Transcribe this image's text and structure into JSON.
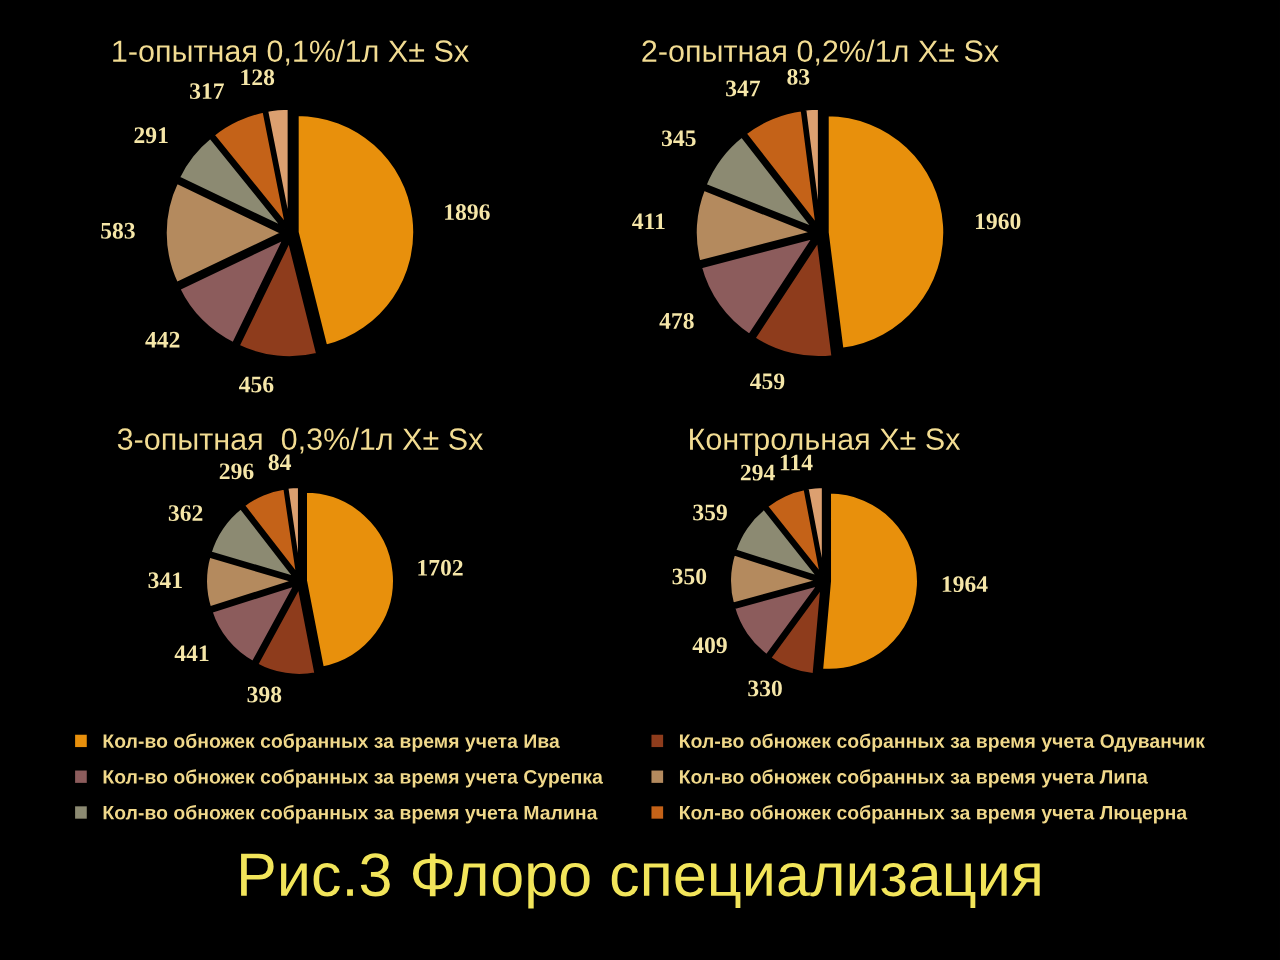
{
  "chart_data": [
    {
      "type": "pie",
      "title": "1-опытная 0,1%/1л X± Sx",
      "categories": [
        "Кол-во обножек собранных за время учета Ива",
        "Кол-во обножек собранных за время учета Одуванчик",
        "Кол-во обножек собранных за время учета Сурепка",
        "Кол-во обножек собранных за время учета Липа",
        "Кол-во обножек собранных за время учета Малина",
        "Кол-во обножек собранных за время учета Люцерна",
        null
      ],
      "values": [
        1896,
        456,
        442,
        583,
        291,
        317,
        128
      ],
      "colors": [
        "#e8900c",
        "#8e3c1c",
        "#8c5c5c",
        "#b48a5e",
        "#8c8a72",
        "#c46218",
        "#dca070"
      ],
      "data_labels": true,
      "legend": "bottom"
    },
    {
      "type": "pie",
      "title": "2-опытная 0,2%/1л X± Sx",
      "categories": [
        null,
        null,
        null,
        null,
        null,
        null,
        null
      ],
      "values": [
        1960,
        459,
        478,
        411,
        345,
        347,
        83
      ],
      "colors": [
        "#e8900c",
        "#8e3c1c",
        "#8c5c5c",
        "#b48a5e",
        "#8c8a72",
        "#c46218",
        "#dca070"
      ],
      "data_labels": true
    },
    {
      "type": "pie",
      "title": "3-опытная  0,3%/1л X± Sx",
      "categories": [
        null,
        null,
        null,
        null,
        null,
        null,
        null
      ],
      "values": [
        1702,
        398,
        441,
        341,
        362,
        296,
        84
      ],
      "colors": [
        "#e8900c",
        "#8e3c1c",
        "#8c5c5c",
        "#b48a5e",
        "#8c8a72",
        "#c46218",
        "#dca070"
      ],
      "data_labels": true
    },
    {
      "type": "pie",
      "title": "Контрольная X± Sx",
      "categories": [
        null,
        null,
        null,
        null,
        null,
        null,
        null
      ],
      "values": [
        1964,
        330,
        409,
        350,
        359,
        294,
        114
      ],
      "colors": [
        "#e8900c",
        "#8e3c1c",
        "#8c5c5c",
        "#b48a5e",
        "#8c8a72",
        "#c46218",
        "#dca070"
      ],
      "data_labels": true,
      "annotations": [
        "Рис.3 Флоро специализация"
      ]
    }
  ]
}
